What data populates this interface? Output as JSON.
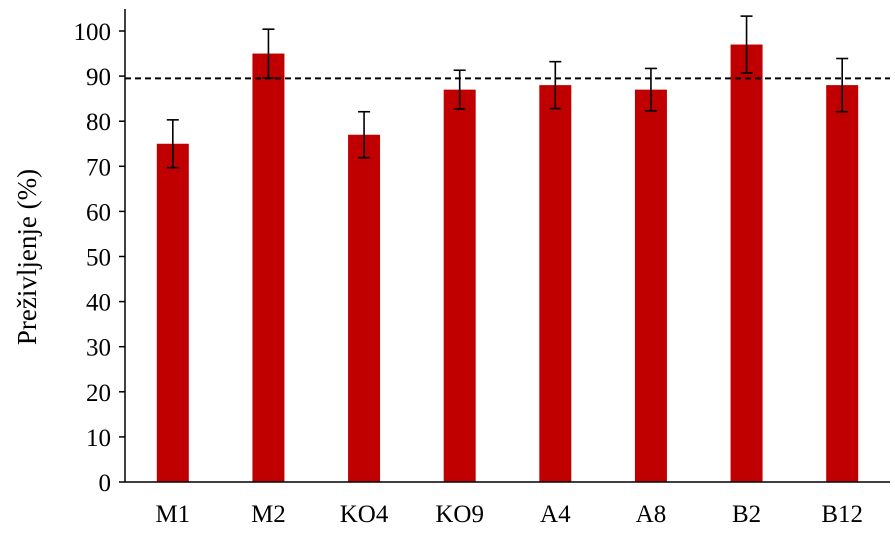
{
  "chart_data": {
    "type": "bar",
    "title": "",
    "xlabel": "",
    "ylabel": "Preživljenje (%)",
    "ylim": [
      0,
      100
    ],
    "yticks": [
      0,
      10,
      20,
      30,
      40,
      50,
      60,
      70,
      80,
      90,
      100
    ],
    "grid": false,
    "categories": [
      "M1",
      "M2",
      "KO4",
      "KO9",
      "A4",
      "A8",
      "B2",
      "B12"
    ],
    "values": [
      75,
      95,
      77,
      87,
      88,
      87,
      97,
      88
    ],
    "errors": [
      5.3,
      5.4,
      5.1,
      4.3,
      5.2,
      4.7,
      6.3,
      5.9
    ],
    "reference_line": 89.5,
    "colors": {
      "bar": "#C00000",
      "error_bar": "#000000",
      "reference_line": "#000000"
    }
  }
}
